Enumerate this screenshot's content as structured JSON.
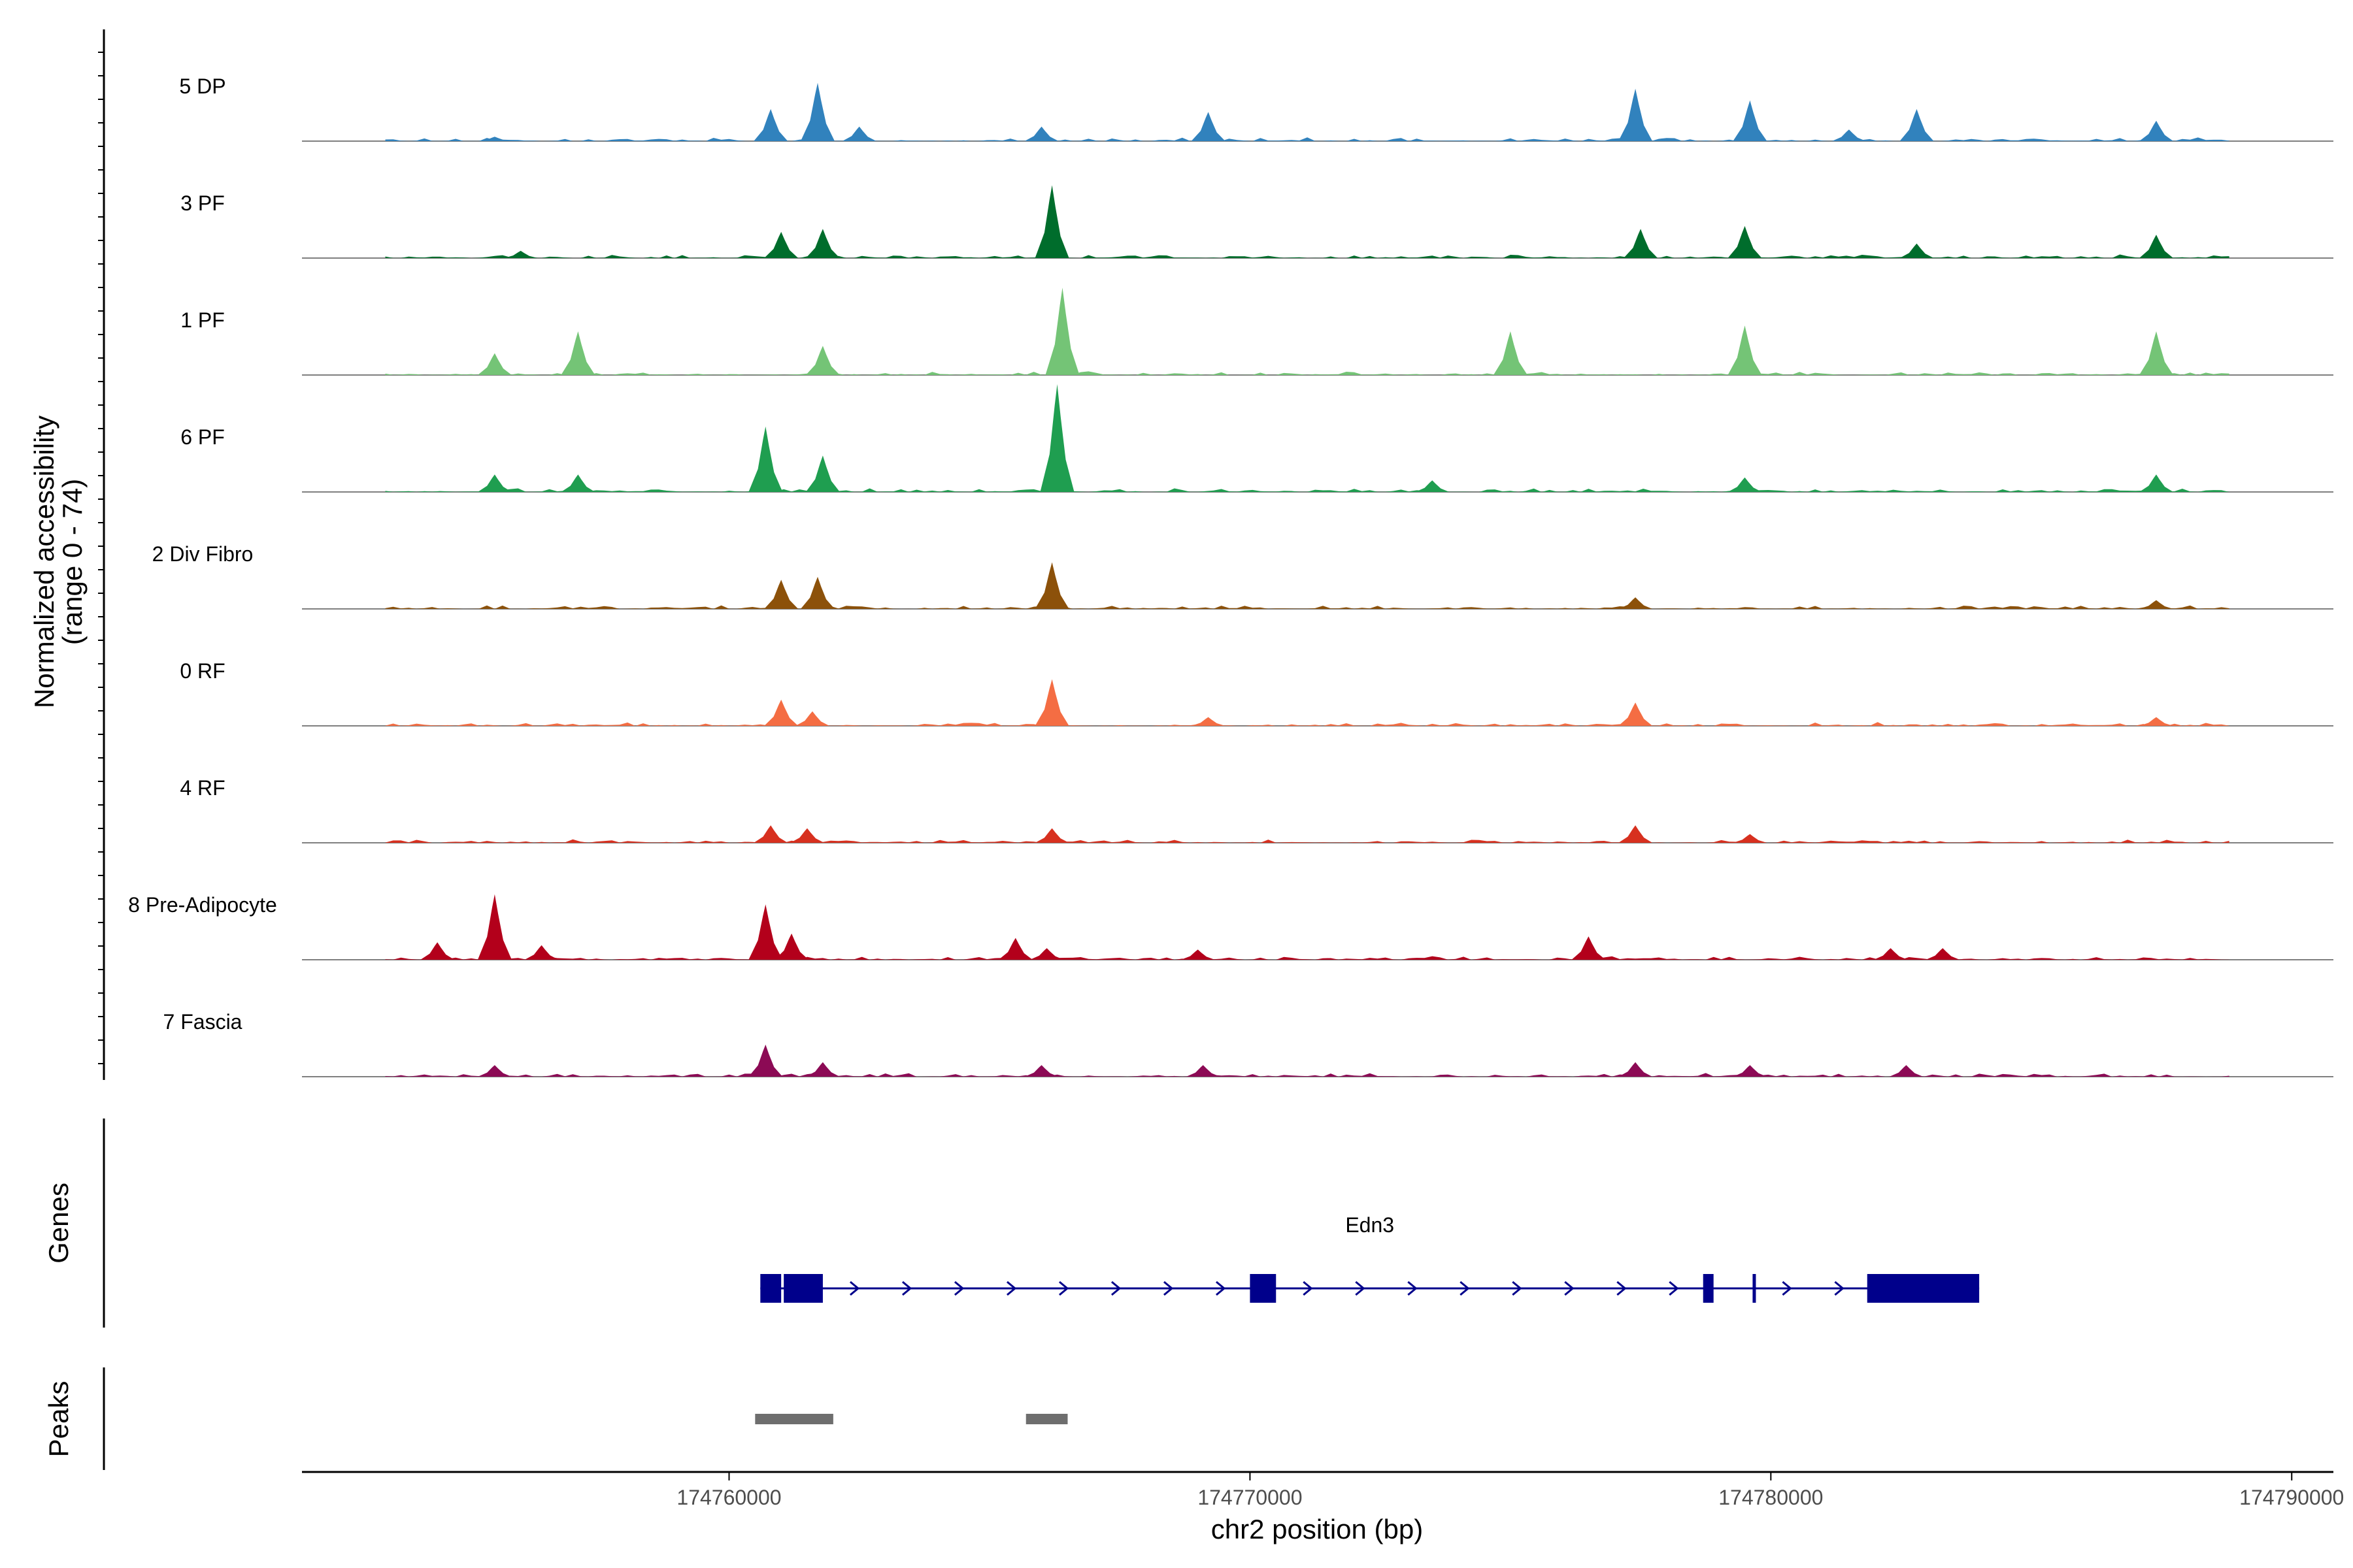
{
  "chart_data": {
    "type": "area",
    "title": "",
    "ylabel": "Normalized accessibility",
    "ylabel_range": "(range 0 - 74)",
    "xlabel": "chr2 position (bp)",
    "xlim": [
      174751800,
      174790800
    ],
    "ylim": [
      0,
      74
    ],
    "x_ticks": [
      174760000,
      174770000,
      174780000,
      174790000
    ],
    "x_tick_labels": [
      "174760000",
      "174770000",
      "174780000",
      "174790000"
    ],
    "tracks": [
      {
        "name": "5 DP",
        "color": "#3182bd",
        "peaks": [
          [
            174755500,
            3
          ],
          [
            174760800,
            22
          ],
          [
            174761700,
            40
          ],
          [
            174762500,
            10
          ],
          [
            174766000,
            10
          ],
          [
            174769200,
            20
          ],
          [
            174777400,
            36
          ],
          [
            174779600,
            28
          ],
          [
            174781500,
            8
          ],
          [
            174782800,
            22
          ],
          [
            174787400,
            14
          ]
        ]
      },
      {
        "name": "3 PF",
        "color": "#006d2c",
        "peaks": [
          [
            174756000,
            5
          ],
          [
            174761000,
            18
          ],
          [
            174761800,
            20
          ],
          [
            174766200,
            50
          ],
          [
            174777500,
            20
          ],
          [
            174779500,
            22
          ],
          [
            174782800,
            10
          ],
          [
            174787400,
            16
          ]
        ]
      },
      {
        "name": "1 PF",
        "color": "#74c476",
        "peaks": [
          [
            174755500,
            15
          ],
          [
            174757100,
            30
          ],
          [
            174761800,
            20
          ],
          [
            174766400,
            60
          ],
          [
            174775000,
            30
          ],
          [
            174779500,
            34
          ],
          [
            174787400,
            30
          ]
        ]
      },
      {
        "name": "6 PF",
        "color": "#1f9e50",
        "peaks": [
          [
            174755500,
            12
          ],
          [
            174757100,
            12
          ],
          [
            174760700,
            45
          ],
          [
            174761800,
            25
          ],
          [
            174766300,
            74
          ],
          [
            174773500,
            8
          ],
          [
            174779500,
            10
          ],
          [
            174787400,
            12
          ]
        ]
      },
      {
        "name": "2 Div Fibro",
        "color": "#8c510a",
        "peaks": [
          [
            174761000,
            20
          ],
          [
            174761700,
            22
          ],
          [
            174766200,
            32
          ],
          [
            174777400,
            8
          ],
          [
            174787400,
            6
          ]
        ]
      },
      {
        "name": "0 RF",
        "color": "#f46d43",
        "peaks": [
          [
            174761000,
            18
          ],
          [
            174761600,
            10
          ],
          [
            174766200,
            32
          ],
          [
            174769200,
            6
          ],
          [
            174777400,
            16
          ],
          [
            174787400,
            6
          ]
        ]
      },
      {
        "name": "4 RF",
        "color": "#d7301f",
        "peaks": [
          [
            174760800,
            12
          ],
          [
            174761500,
            10
          ],
          [
            174766200,
            10
          ],
          [
            174777400,
            12
          ],
          [
            174779600,
            6
          ]
        ]
      },
      {
        "name": "8 Pre-Adipocyte",
        "color": "#b3001b",
        "peaks": [
          [
            174754400,
            12
          ],
          [
            174755500,
            45
          ],
          [
            174756400,
            10
          ],
          [
            174760700,
            38
          ],
          [
            174761200,
            18
          ],
          [
            174765500,
            15
          ],
          [
            174766100,
            8
          ],
          [
            174769000,
            7
          ],
          [
            174776500,
            16
          ],
          [
            174782300,
            8
          ],
          [
            174783300,
            8
          ]
        ]
      },
      {
        "name": "7 Fascia",
        "color": "#8c0a55",
        "peaks": [
          [
            174755500,
            8
          ],
          [
            174760700,
            22
          ],
          [
            174761800,
            10
          ],
          [
            174766000,
            8
          ],
          [
            174769100,
            8
          ],
          [
            174777400,
            10
          ],
          [
            174779600,
            8
          ],
          [
            174782600,
            8
          ]
        ]
      }
    ],
    "gene_track": {
      "title": "Genes",
      "gene_name": "Edn3",
      "strand": "+",
      "start": 174760600,
      "end": 174784000,
      "exons": [
        [
          174760600,
          174761000
        ],
        [
          174761050,
          174761800
        ],
        [
          174770000,
          174770500
        ],
        [
          174778700,
          174778900
        ],
        [
          174779650,
          174779700
        ],
        [
          174781850,
          174784000
        ]
      ]
    },
    "peak_track": {
      "title": "Peaks",
      "regions": [
        [
          174760500,
          174762000
        ],
        [
          174765700,
          174766500
        ]
      ]
    }
  }
}
